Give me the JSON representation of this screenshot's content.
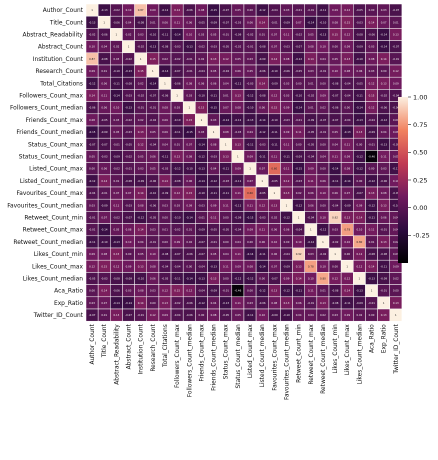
{
  "chart_data": {
    "type": "heatmap",
    "title": "",
    "variables": [
      "Author_Count",
      "Title_Count",
      "Abstract_Readability",
      "Abstract_Count",
      "Institution_Count",
      "Research_Count",
      "Total_Citations",
      "Followers_Count_max",
      "Followers_Count_median",
      "Friends_Count_max",
      "Friends_Count_median",
      "Status_Count_max",
      "Status_Count_median",
      "Listed_Count_max",
      "Listed_Count_median",
      "Favourites_Count_max",
      "Favourites_Count_median",
      "Retweet_Count_min",
      "Retweet_Count_max",
      "Retweet_Count_median",
      "Likes_Count_min",
      "Likes_Count_max",
      "Likes_Count_median",
      "Aca_Ratio",
      "Exp_Ratio",
      "Twitter_ID_Count"
    ],
    "value_range": [
      -0.5,
      1.0
    ],
    "colorbar": {
      "ticks": [
        "1.00",
        "0.75",
        "0.50",
        "0.25",
        "0.00",
        "-0.25"
      ],
      "tick_values": [
        1.0,
        0.75,
        0.5,
        0.25,
        0.0,
        -0.25
      ]
    },
    "notable_correlations": [
      {
        "a": "Author_Count",
        "b": "Institution_Count",
        "value": 0.87
      },
      {
        "a": "Retweet_Count_max",
        "b": "Likes_Count_max",
        "value": 0.78
      },
      {
        "a": "Retweet_Count_median",
        "b": "Likes_Count_median",
        "value": 0.8
      },
      {
        "a": "Retweet_Count_min",
        "b": "Likes_Count_min",
        "value": 0.92
      },
      {
        "a": "Status_Count_median",
        "b": "Aca_Ratio",
        "value": -0.46
      },
      {
        "a": "Listed_Count_max",
        "b": "Favourites_Count_max",
        "value": 0.6
      }
    ],
    "legend": "right"
  },
  "colors": {
    "low": "#000000",
    "mid_low": "#5c1465",
    "mid": "#c13a54",
    "mid_high": "#f1825f",
    "high": "#fcf0e1",
    "grid_line": "#ffffff"
  }
}
